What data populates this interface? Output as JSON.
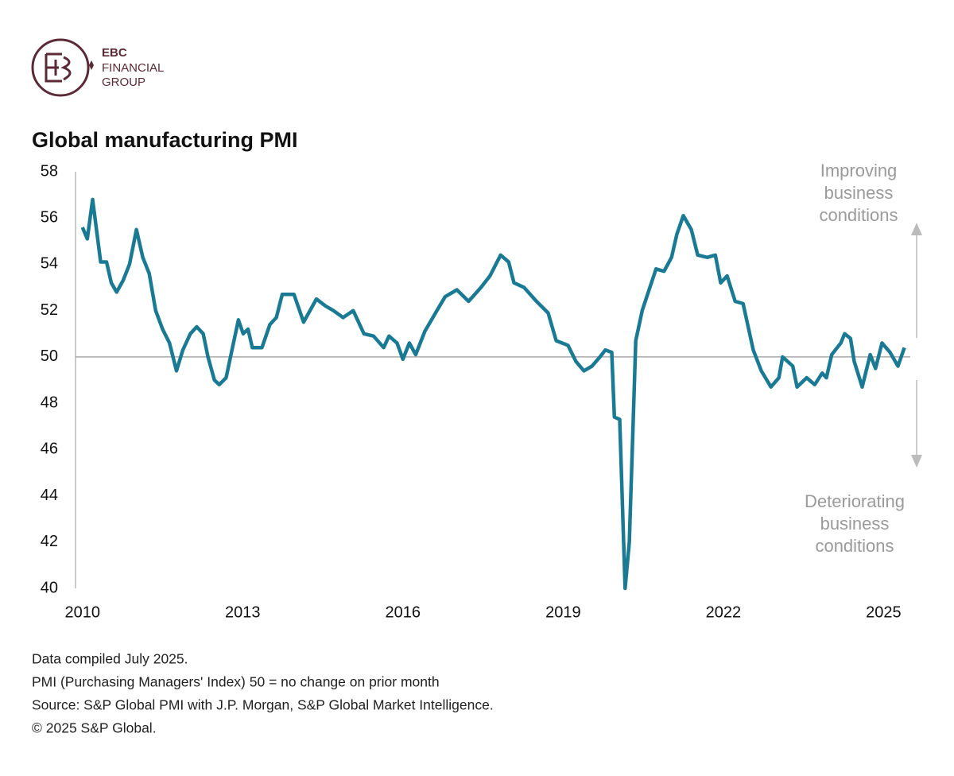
{
  "logo": {
    "lines": [
      "EBC",
      "FINANCIAL",
      "GROUP"
    ]
  },
  "chart_data": {
    "type": "line",
    "title": "Global manufacturing PMI",
    "x": [
      2010.0,
      2010.09,
      2010.19,
      2010.34,
      2010.45,
      2010.54,
      2010.64,
      2010.76,
      2010.88,
      2011.01,
      2011.13,
      2011.25,
      2011.37,
      2011.5,
      2011.63,
      2011.76,
      2011.88,
      2012.02,
      2012.14,
      2012.26,
      2012.35,
      2012.47,
      2012.56,
      2012.69,
      2012.8,
      2012.92,
      2013.01,
      2013.1,
      2013.18,
      2013.36,
      2013.51,
      2013.63,
      2013.74,
      2013.96,
      2014.14,
      2014.38,
      2014.55,
      2014.7,
      2014.88,
      2015.07,
      2015.27,
      2015.45,
      2015.64,
      2015.74,
      2015.89,
      2016.0,
      2016.12,
      2016.24,
      2016.41,
      2016.61,
      2016.79,
      2017.01,
      2017.23,
      2017.46,
      2017.63,
      2017.83,
      2017.98,
      2018.08,
      2018.27,
      2018.5,
      2018.72,
      2018.87,
      2019.09,
      2019.24,
      2019.39,
      2019.54,
      2019.69,
      2019.79,
      2019.91,
      2019.96,
      2020.06,
      2020.16,
      2020.24,
      2020.36,
      2020.48,
      2020.58,
      2020.74,
      2020.89,
      2021.03,
      2021.13,
      2021.25,
      2021.4,
      2021.52,
      2021.7,
      2021.85,
      2021.95,
      2022.07,
      2022.22,
      2022.37,
      2022.56,
      2022.71,
      2022.89,
      2023.04,
      2023.11,
      2023.3,
      2023.38,
      2023.56,
      2023.71,
      2023.85,
      2023.93,
      2024.03,
      2024.2,
      2024.27,
      2024.38,
      2024.45,
      2024.6,
      2024.75,
      2024.85,
      2024.97,
      2025.12,
      2025.27,
      2025.39
    ],
    "series": [
      {
        "name": "Global manufacturing PMI",
        "color": "#1a7a94",
        "values": [
          55.6,
          55.1,
          56.8,
          54.1,
          54.1,
          53.2,
          52.8,
          53.3,
          54.0,
          55.5,
          54.3,
          53.6,
          52.0,
          51.2,
          50.6,
          49.4,
          50.3,
          51.0,
          51.3,
          51.0,
          50.0,
          49.0,
          48.8,
          49.1,
          50.3,
          51.6,
          51.0,
          51.2,
          50.4,
          50.4,
          51.4,
          51.7,
          52.7,
          52.7,
          51.5,
          52.5,
          52.2,
          52.0,
          51.7,
          52.0,
          51.0,
          50.9,
          50.4,
          50.9,
          50.6,
          49.9,
          50.6,
          50.1,
          51.1,
          51.9,
          52.6,
          52.9,
          52.4,
          53.0,
          53.5,
          54.4,
          54.1,
          53.2,
          53.0,
          52.4,
          51.9,
          50.7,
          50.5,
          49.8,
          49.4,
          49.6,
          50.0,
          50.3,
          50.2,
          47.4,
          47.3,
          40.0,
          42.0,
          50.7,
          52.0,
          52.7,
          53.8,
          53.7,
          54.3,
          55.3,
          56.1,
          55.5,
          54.4,
          54.3,
          54.4,
          53.2,
          53.5,
          52.4,
          52.3,
          50.3,
          49.4,
          48.7,
          49.1,
          50.0,
          49.6,
          48.7,
          49.1,
          48.8,
          49.3,
          49.1,
          50.1,
          50.6,
          51.0,
          50.8,
          49.8,
          48.7,
          50.1,
          49.5,
          50.6,
          50.2,
          49.6,
          50.4
        ]
      }
    ],
    "xlim": [
      2009.87,
      2025.5
    ],
    "xticks": [
      2010,
      2013,
      2016,
      2019,
      2022,
      2025
    ],
    "ylim": [
      40,
      58
    ],
    "yticks": [
      40,
      42,
      44,
      46,
      48,
      50,
      52,
      54,
      56,
      58
    ],
    "reference_line": 50,
    "annotations": [
      [
        "Improving",
        "business",
        "conditions"
      ],
      [
        "Deteriorating",
        "business",
        "conditions"
      ]
    ],
    "notes": [
      "Data compiled July 2025.",
      "PMI (Purchasing Managers' Index) 50 = no change on prior month",
      "Source: S&P Global  PMI with J.P. Morgan, S&P Global Market Intelligence.",
      "© 2025 S&P Global."
    ]
  }
}
